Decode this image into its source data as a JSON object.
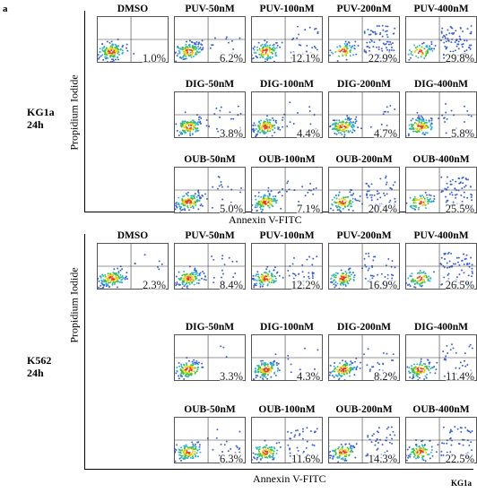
{
  "panel_letter": "a",
  "footer_mark": "KG1a",
  "sections": [
    {
      "cell_line": "KG1a",
      "time": "24h",
      "y_axis_label": "Propidium Iodide",
      "x_axis_label": "Annexin V-FITC",
      "rows": [
        [
          {
            "label": "DMSO",
            "percent": "1.0%"
          },
          {
            "label": "PUV-50nM",
            "percent": "6.2%"
          },
          {
            "label": "PUV-100nM",
            "percent": "12.1%"
          },
          {
            "label": "PUV-200nM",
            "percent": "22.9%"
          },
          {
            "label": "PUV-400nM",
            "percent": "29.8%"
          }
        ],
        [
          {
            "label": "DIG-50nM",
            "percent": "3.8%"
          },
          {
            "label": "DIG-100nM",
            "percent": "4.4%"
          },
          {
            "label": "DIG-200nM",
            "percent": "4.7%"
          },
          {
            "label": "DIG-400nM",
            "percent": "5.8%"
          }
        ],
        [
          {
            "label": "OUB-50nM",
            "percent": "5.0%"
          },
          {
            "label": "OUB-100nM",
            "percent": "7.1%"
          },
          {
            "label": "OUB-200nM",
            "percent": "20.4%"
          },
          {
            "label": "OUB-400nM",
            "percent": "25.5%"
          }
        ]
      ]
    },
    {
      "cell_line": "K562",
      "time": "24h",
      "y_axis_label": "Propidium Iodide",
      "x_axis_label": "Annexin V-FITC",
      "rows": [
        [
          {
            "label": "DMSO",
            "percent": "2.3%"
          },
          {
            "label": "PUV-50nM",
            "percent": "8.4%"
          },
          {
            "label": "PUV-100nM",
            "percent": "12.2%"
          },
          {
            "label": "PUV-200nM",
            "percent": "16.9%"
          },
          {
            "label": "PUV-400nM",
            "percent": "26.5%"
          }
        ],
        [
          {
            "label": "DIG-50nM",
            "percent": "3.3%"
          },
          {
            "label": "DIG-100nM",
            "percent": "4.3%"
          },
          {
            "label": "DIG-200nM",
            "percent": "8.2%"
          },
          {
            "label": "DIG-400nM",
            "percent": "11.4%"
          }
        ],
        [
          {
            "label": "OUB-50nM",
            "percent": "6.3%"
          },
          {
            "label": "OUB-100nM",
            "percent": "11.6%"
          },
          {
            "label": "OUB-200nM",
            "percent": "14.3%"
          },
          {
            "label": "OUB-400nM",
            "percent": "22.5%"
          }
        ]
      ]
    }
  ]
}
